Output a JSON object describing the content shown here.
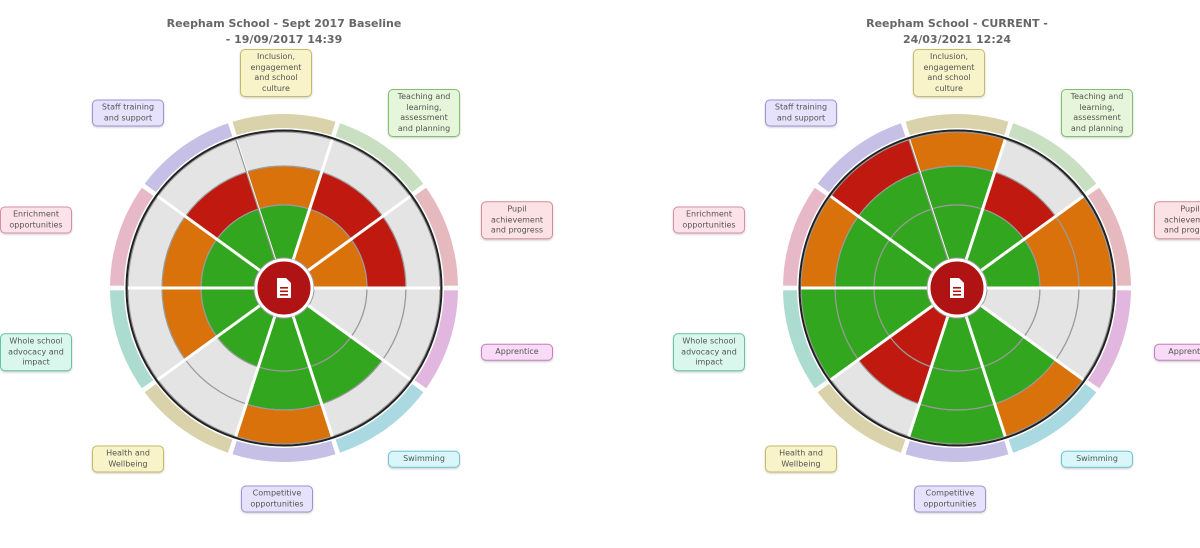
{
  "wheels": [
    {
      "title": "Reepham School  -  Sept 2017 Baseline  -  19/09/2017 14:39",
      "segments": [
        {
          "label": "Inclusion, engagement and school culture",
          "levels": [
            "green",
            "orange",
            "grey"
          ]
        },
        {
          "label": "Teaching and learning, assessment and planning",
          "levels": [
            "orange",
            "red",
            "grey"
          ]
        },
        {
          "label": "Pupil achievement and progress",
          "levels": [
            "orange",
            "red",
            "grey"
          ]
        },
        {
          "label": "Apprentice",
          "levels": [
            "grey",
            "grey",
            "grey"
          ]
        },
        {
          "label": "Swimming",
          "levels": [
            "green",
            "green",
            "grey"
          ]
        },
        {
          "label": "Competitive opportunities",
          "levels": [
            "green",
            "green",
            "orange"
          ]
        },
        {
          "label": "Health and Wellbeing",
          "levels": [
            "green",
            "grey",
            "grey"
          ]
        },
        {
          "label": "Whole school advocacy and impact",
          "levels": [
            "green",
            "orange",
            "grey"
          ]
        },
        {
          "label": "Enrichment opportunities",
          "levels": [
            "green",
            "orange",
            "grey"
          ]
        },
        {
          "label": "Staff training and support",
          "levels": [
            "green",
            "red",
            "grey"
          ]
        }
      ]
    },
    {
      "title": "Reepham School  -  CURRENT  -  24/03/2021 12:24",
      "segments": [
        {
          "label": "Inclusion, engagement and school culture",
          "levels": [
            "green",
            "green",
            "orange"
          ]
        },
        {
          "label": "Teaching and learning, assessment and planning",
          "levels": [
            "green",
            "red",
            "grey"
          ]
        },
        {
          "label": "Pupil achievement and progress",
          "levels": [
            "green",
            "orange",
            "orange"
          ]
        },
        {
          "label": "Apprentice",
          "levels": [
            "grey",
            "grey",
            "grey"
          ]
        },
        {
          "label": "Swimming",
          "levels": [
            "green",
            "green",
            "orange"
          ]
        },
        {
          "label": "Competitive opportunities",
          "levels": [
            "green",
            "green",
            "green"
          ]
        },
        {
          "label": "Health and Wellbeing",
          "levels": [
            "red",
            "red",
            "grey"
          ]
        },
        {
          "label": "Whole school advocacy and impact",
          "levels": [
            "green",
            "green",
            "green"
          ]
        },
        {
          "label": "Enrichment opportunities",
          "levels": [
            "green",
            "green",
            "orange"
          ]
        },
        {
          "label": "Staff training and support",
          "levels": [
            "green",
            "green",
            "red"
          ]
        }
      ]
    }
  ],
  "palette": {
    "red": "#c01a10",
    "orange": "#da720c",
    "green": "#32a61e",
    "grey": "#e4e4e4"
  }
}
